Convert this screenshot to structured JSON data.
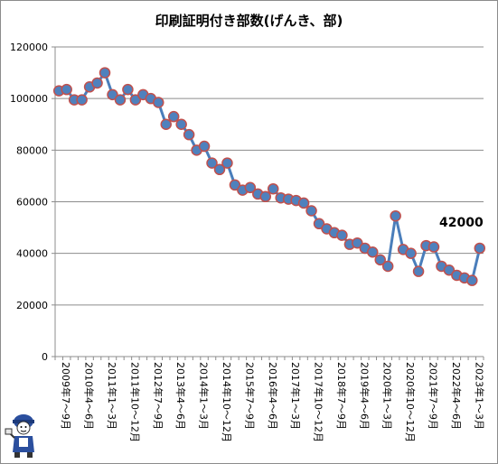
{
  "chart_data": {
    "type": "line",
    "title": "印刷証明付き部数(げんき、部)",
    "ylim": [
      0,
      120000
    ],
    "yticks": [
      0,
      20000,
      40000,
      60000,
      80000,
      100000,
      120000
    ],
    "grid": true,
    "legend": "none",
    "line_color": "#4a7ebb",
    "marker_fill": "#4f81bd",
    "marker_edge": "#c0504d",
    "x_tick_labels": [
      "2009年7～9月",
      "2010年4～6月",
      "2011年1～3月",
      "2011年10～12月",
      "2012年7～9月",
      "2013年4～6月",
      "2014年1～3月",
      "2014年10～12月",
      "2015年7～9月",
      "2016年4～6月",
      "2017年1～3月",
      "2017年10～12月",
      "2018年7～9月",
      "2019年4～6月",
      "2020年1～3月",
      "2020年10～12月",
      "2021年7～9月",
      "2022年4～6月",
      "2023年1～3月"
    ],
    "x_tick_every": 3,
    "values": [
      103000,
      103500,
      99500,
      99500,
      104500,
      106000,
      110000,
      101500,
      99500,
      103500,
      99500,
      101500,
      100000,
      98500,
      90000,
      93000,
      90000,
      86000,
      80000,
      81500,
      75000,
      72500,
      75000,
      66500,
      64500,
      65500,
      63000,
      62000,
      65000,
      61500,
      61000,
      60500,
      59500,
      56500,
      51500,
      49500,
      48000,
      47000,
      43500,
      44000,
      42000,
      40500,
      37500,
      35000,
      54500,
      41500,
      40000,
      33000,
      43000,
      42500,
      35000,
      33500,
      31500,
      30500,
      29500,
      42000
    ],
    "annotation": {
      "text": "42000",
      "index": 55
    }
  }
}
